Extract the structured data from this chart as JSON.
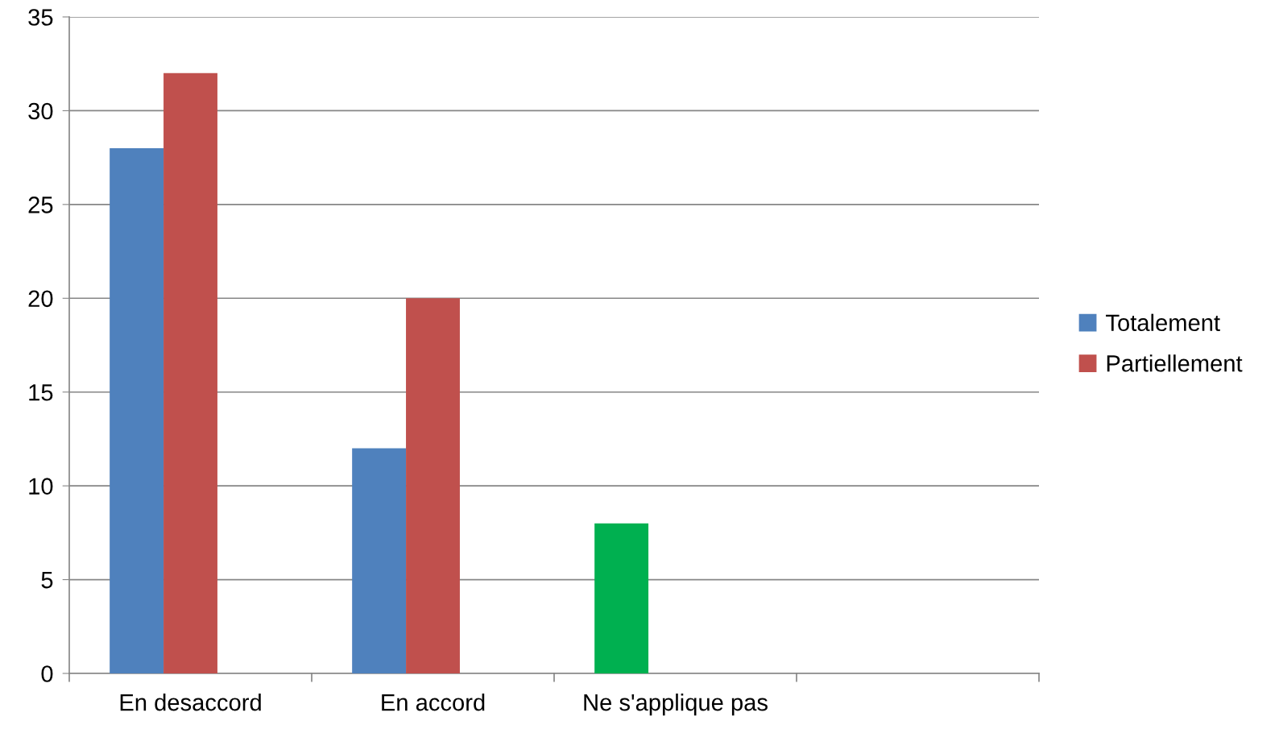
{
  "chart_data": {
    "type": "bar",
    "categories": [
      "En desaccord",
      "En accord",
      "Ne s'applique pas",
      null
    ],
    "series": [
      {
        "name": "Totalement",
        "color": "#4f81bd",
        "colors": [
          "#4f81bd",
          "#4f81bd",
          "#00b050",
          null
        ],
        "values": [
          28,
          12,
          8,
          null
        ]
      },
      {
        "name": "Partiellement",
        "color": "#c0504d",
        "values": [
          32,
          20,
          null,
          null
        ]
      }
    ],
    "ylim": [
      0,
      35
    ],
    "yticks": [
      0,
      5,
      10,
      15,
      20,
      25,
      30,
      35
    ],
    "grid": "y",
    "legend": "right"
  }
}
